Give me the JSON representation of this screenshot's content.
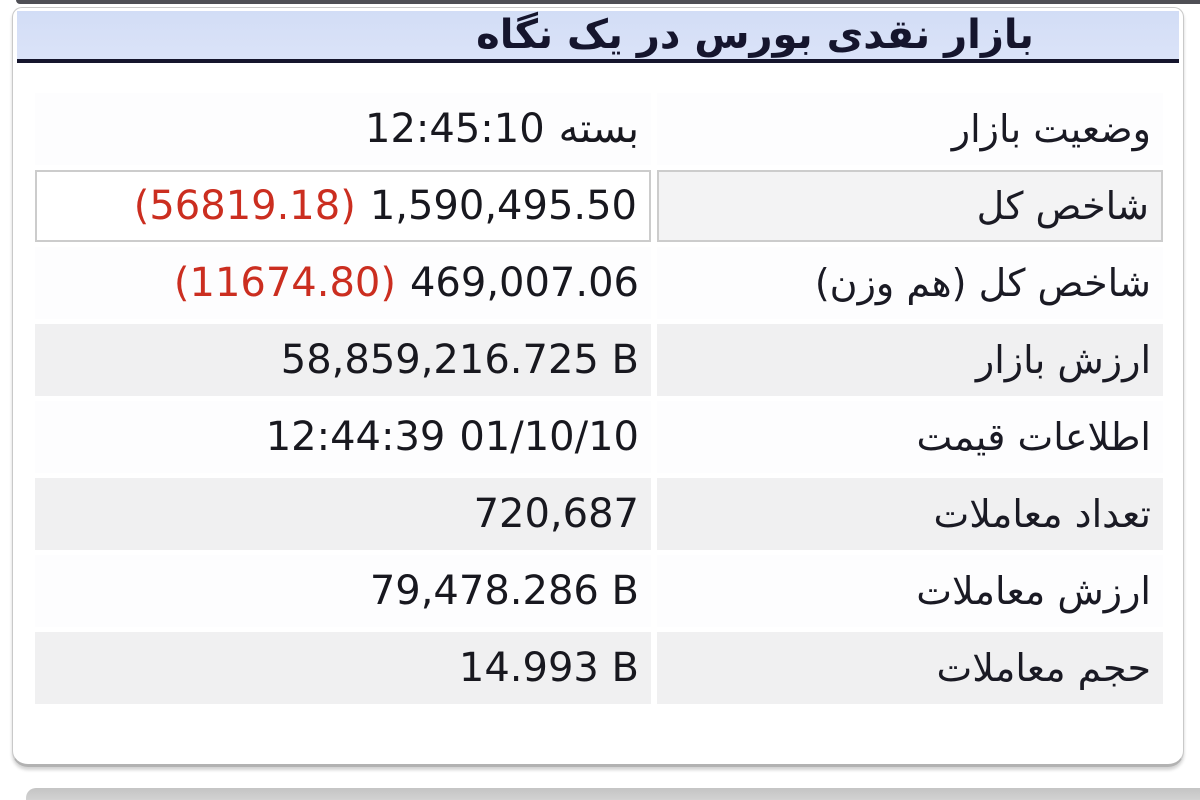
{
  "header": {
    "title": "بازار نقدی بورس در یک نگاه"
  },
  "colors": {
    "header_bg": "#d6e0f7",
    "header_underline": "#15152d",
    "negative_red": "#cb2e20",
    "row_alt_bg": "#f0f0f1",
    "panel_border": "#c9c9c9"
  },
  "table": {
    "rows": [
      {
        "label": "وضعیت بازار",
        "boxed": false,
        "parts": [
          {
            "text": "12:45:10",
            "negative": false
          },
          {
            "text": "بسته",
            "negative": false
          }
        ]
      },
      {
        "label": "شاخص کل",
        "boxed": true,
        "parts": [
          {
            "text": "(56819.18)",
            "negative": true
          },
          {
            "text": "1,590,495.50",
            "negative": false
          }
        ]
      },
      {
        "label": "شاخص کل (هم وزن)",
        "boxed": false,
        "parts": [
          {
            "text": "(11674.80)",
            "negative": true
          },
          {
            "text": "469,007.06",
            "negative": false
          }
        ]
      },
      {
        "label": "ارزش بازار",
        "boxed": false,
        "parts": [
          {
            "text": "58,859,216.725 B",
            "negative": false
          }
        ]
      },
      {
        "label": "اطلاعات قیمت",
        "boxed": false,
        "parts": [
          {
            "text": "12:44:39",
            "negative": false
          },
          {
            "text": "01/10/10",
            "negative": false
          }
        ]
      },
      {
        "label": "تعداد معاملات",
        "boxed": false,
        "parts": [
          {
            "text": "720,687",
            "negative": false
          }
        ]
      },
      {
        "label": "ارزش معاملات",
        "boxed": false,
        "parts": [
          {
            "text": "79,478.286 B",
            "negative": false
          }
        ]
      },
      {
        "label": "حجم معاملات",
        "boxed": false,
        "parts": [
          {
            "text": "14.993 B",
            "negative": false
          }
        ]
      }
    ]
  }
}
